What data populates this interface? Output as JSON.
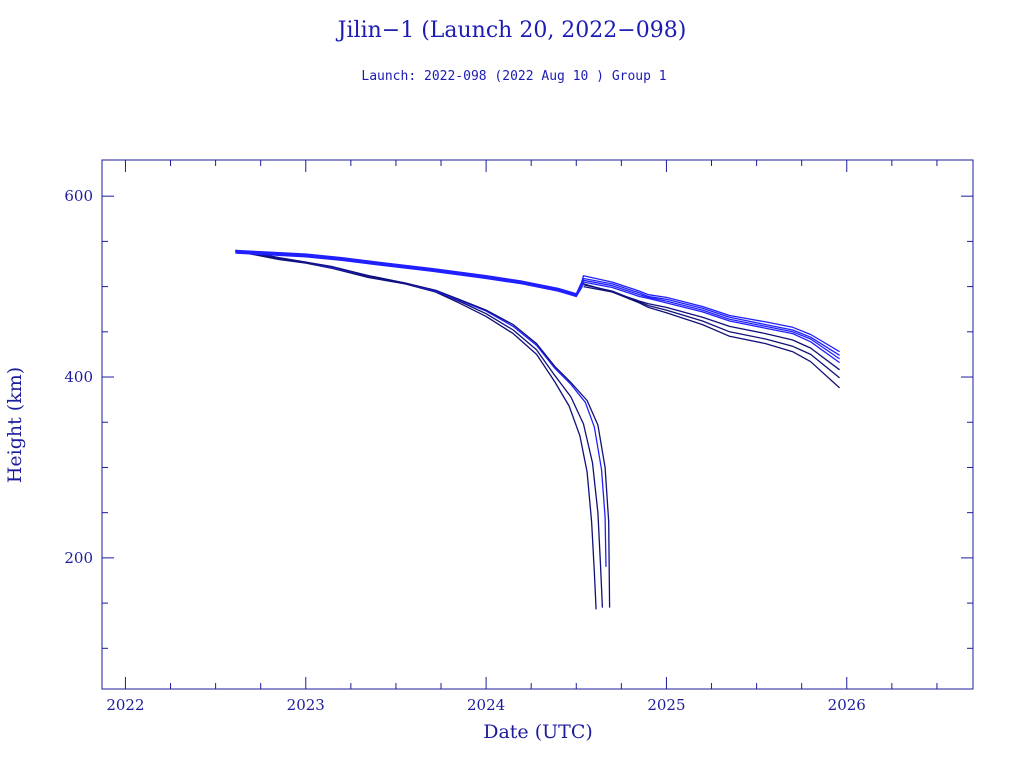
{
  "chart_data": {
    "type": "line",
    "title": "Jilin−1 (Launch 20, 2022−098)",
    "subtitle": "Launch: 2022-098  (2022 Aug 10 )  Group 1",
    "xlabel": "Date (UTC)",
    "ylabel": "Height (km)",
    "xlim": [
      2021.87,
      2026.7
    ],
    "ylim": [
      55,
      640
    ],
    "x_ticks": [
      2022,
      2023,
      2024,
      2025,
      2026
    ],
    "x_tick_labels": [
      "2022",
      "2023",
      "2024",
      "2025",
      "2026"
    ],
    "y_ticks": [
      200,
      400,
      600
    ],
    "y_tick_labels": [
      "200",
      "400",
      "600"
    ],
    "grid": false,
    "colors": {
      "axis": "#1c1c9c",
      "text": "#1c1cb4",
      "series_bright": "#2020ff",
      "series_dark": "#10107a"
    },
    "series": [
      {
        "color": "#10107a",
        "points": [
          [
            2022.61,
            539
          ],
          [
            2022.72,
            535
          ],
          [
            2022.85,
            530
          ],
          [
            2023.0,
            526
          ],
          [
            2023.15,
            520
          ],
          [
            2023.35,
            510
          ],
          [
            2023.55,
            503
          ],
          [
            2023.72,
            494
          ],
          [
            2023.85,
            482
          ],
          [
            2024.0,
            467
          ],
          [
            2024.15,
            448
          ],
          [
            2024.28,
            425
          ],
          [
            2024.38,
            395
          ],
          [
            2024.46,
            368
          ],
          [
            2024.52,
            335
          ],
          [
            2024.56,
            295
          ],
          [
            2024.585,
            240
          ],
          [
            2024.6,
            185
          ],
          [
            2024.61,
            143
          ]
        ]
      },
      {
        "color": "#10107a",
        "points": [
          [
            2022.61,
            539
          ],
          [
            2022.72,
            536
          ],
          [
            2022.85,
            531
          ],
          [
            2023.0,
            527
          ],
          [
            2023.15,
            521
          ],
          [
            2023.35,
            511
          ],
          [
            2023.55,
            504
          ],
          [
            2023.72,
            495
          ],
          [
            2023.85,
            484
          ],
          [
            2024.0,
            470
          ],
          [
            2024.15,
            452
          ],
          [
            2024.28,
            430
          ],
          [
            2024.38,
            402
          ],
          [
            2024.47,
            378
          ],
          [
            2024.54,
            348
          ],
          [
            2024.59,
            305
          ],
          [
            2024.62,
            250
          ],
          [
            2024.635,
            190
          ],
          [
            2024.645,
            145
          ]
        ]
      },
      {
        "color": "#2020ff",
        "points": [
          [
            2022.61,
            540
          ],
          [
            2022.72,
            537
          ],
          [
            2022.85,
            532
          ],
          [
            2023.0,
            527
          ],
          [
            2023.15,
            521
          ],
          [
            2023.35,
            512
          ],
          [
            2023.55,
            504
          ],
          [
            2023.72,
            495
          ],
          [
            2023.85,
            485
          ],
          [
            2024.0,
            473
          ],
          [
            2024.15,
            456
          ],
          [
            2024.28,
            435
          ],
          [
            2024.38,
            410
          ],
          [
            2024.47,
            392
          ],
          [
            2024.55,
            372
          ],
          [
            2024.6,
            345
          ],
          [
            2024.64,
            298
          ],
          [
            2024.66,
            245
          ],
          [
            2024.665,
            190
          ]
        ]
      },
      {
        "color": "#10107a",
        "points": [
          [
            2022.61,
            540
          ],
          [
            2022.72,
            537
          ],
          [
            2022.85,
            532
          ],
          [
            2023.0,
            527
          ],
          [
            2023.15,
            522
          ],
          [
            2023.35,
            512
          ],
          [
            2023.55,
            504
          ],
          [
            2023.72,
            496
          ],
          [
            2023.85,
            486
          ],
          [
            2024.0,
            474
          ],
          [
            2024.15,
            458
          ],
          [
            2024.28,
            437
          ],
          [
            2024.38,
            412
          ],
          [
            2024.47,
            394
          ],
          [
            2024.56,
            374
          ],
          [
            2024.62,
            347
          ],
          [
            2024.66,
            300
          ],
          [
            2024.68,
            240
          ],
          [
            2024.685,
            145
          ]
        ]
      },
      {
        "color": "#2020ff",
        "points": [
          [
            2022.61,
            540
          ],
          [
            2022.8,
            538
          ],
          [
            2023.0,
            536
          ],
          [
            2023.2,
            532
          ],
          [
            2023.4,
            527
          ],
          [
            2023.7,
            520
          ],
          [
            2024.0,
            512
          ],
          [
            2024.2,
            506
          ],
          [
            2024.4,
            498
          ],
          [
            2024.5,
            492
          ],
          [
            2024.53,
            505
          ],
          [
            2024.54,
            512
          ],
          [
            2024.7,
            505
          ],
          [
            2024.85,
            495
          ],
          [
            2024.9,
            491
          ],
          [
            2025.0,
            488
          ],
          [
            2025.2,
            478
          ],
          [
            2025.35,
            468
          ],
          [
            2025.55,
            461
          ],
          [
            2025.7,
            455
          ],
          [
            2025.8,
            447
          ],
          [
            2025.96,
            428
          ]
        ]
      },
      {
        "color": "#2020ff",
        "points": [
          [
            2022.61,
            539
          ],
          [
            2022.8,
            537
          ],
          [
            2023.0,
            535
          ],
          [
            2023.2,
            531
          ],
          [
            2023.4,
            526
          ],
          [
            2023.7,
            519
          ],
          [
            2024.0,
            511
          ],
          [
            2024.2,
            505
          ],
          [
            2024.4,
            497
          ],
          [
            2024.5,
            491
          ],
          [
            2024.53,
            503
          ],
          [
            2024.54,
            509
          ],
          [
            2024.7,
            503
          ],
          [
            2024.85,
            493
          ],
          [
            2024.9,
            489
          ],
          [
            2025.0,
            486
          ],
          [
            2025.2,
            476
          ],
          [
            2025.35,
            466
          ],
          [
            2025.55,
            458
          ],
          [
            2025.7,
            452
          ],
          [
            2025.8,
            444
          ],
          [
            2025.96,
            424
          ]
        ]
      },
      {
        "color": "#2020ff",
        "points": [
          [
            2022.61,
            538
          ],
          [
            2022.8,
            536
          ],
          [
            2023.0,
            534
          ],
          [
            2023.2,
            530
          ],
          [
            2023.4,
            525
          ],
          [
            2023.7,
            518
          ],
          [
            2024.0,
            510
          ],
          [
            2024.2,
            504
          ],
          [
            2024.4,
            496
          ],
          [
            2024.5,
            490
          ],
          [
            2024.53,
            501
          ],
          [
            2024.54,
            507
          ],
          [
            2024.7,
            501
          ],
          [
            2024.85,
            491
          ],
          [
            2024.9,
            488
          ],
          [
            2025.0,
            484
          ],
          [
            2025.2,
            474
          ],
          [
            2025.35,
            464
          ],
          [
            2025.55,
            456
          ],
          [
            2025.7,
            450
          ],
          [
            2025.8,
            442
          ],
          [
            2025.96,
            420
          ]
        ]
      },
      {
        "color": "#2020ff",
        "points": [
          [
            2022.61,
            537
          ],
          [
            2022.8,
            535
          ],
          [
            2023.0,
            533
          ],
          [
            2023.2,
            529
          ],
          [
            2023.4,
            524
          ],
          [
            2023.7,
            517
          ],
          [
            2024.0,
            509
          ],
          [
            2024.2,
            503
          ],
          [
            2024.4,
            495
          ],
          [
            2024.5,
            489
          ],
          [
            2024.53,
            499
          ],
          [
            2024.54,
            505
          ],
          [
            2024.7,
            499
          ],
          [
            2024.85,
            489
          ],
          [
            2024.9,
            487
          ],
          [
            2025.0,
            482
          ],
          [
            2025.2,
            472
          ],
          [
            2025.35,
            462
          ],
          [
            2025.55,
            454
          ],
          [
            2025.7,
            448
          ],
          [
            2025.8,
            439
          ],
          [
            2025.96,
            416
          ]
        ]
      },
      {
        "color": "#10107a",
        "points": [
          [
            2024.54,
            500
          ],
          [
            2024.7,
            494
          ],
          [
            2024.85,
            484
          ],
          [
            2024.9,
            481
          ],
          [
            2025.0,
            477
          ],
          [
            2025.2,
            466
          ],
          [
            2025.35,
            456
          ],
          [
            2025.55,
            448
          ],
          [
            2025.7,
            441
          ],
          [
            2025.8,
            432
          ],
          [
            2025.96,
            408
          ]
        ]
      },
      {
        "color": "#10107a",
        "points": [
          [
            2024.54,
            502
          ],
          [
            2024.7,
            495
          ],
          [
            2024.85,
            483
          ],
          [
            2024.9,
            479
          ],
          [
            2025.0,
            474
          ],
          [
            2025.2,
            462
          ],
          [
            2025.35,
            450
          ],
          [
            2025.55,
            442
          ],
          [
            2025.7,
            434
          ],
          [
            2025.8,
            425
          ],
          [
            2025.96,
            399
          ]
        ]
      },
      {
        "color": "#10107a",
        "points": [
          [
            2024.54,
            503
          ],
          [
            2024.7,
            494
          ],
          [
            2024.85,
            482
          ],
          [
            2024.9,
            477
          ],
          [
            2025.0,
            471
          ],
          [
            2025.2,
            458
          ],
          [
            2025.35,
            445
          ],
          [
            2025.55,
            437
          ],
          [
            2025.7,
            428
          ],
          [
            2025.8,
            417
          ],
          [
            2025.96,
            388
          ]
        ]
      }
    ]
  }
}
